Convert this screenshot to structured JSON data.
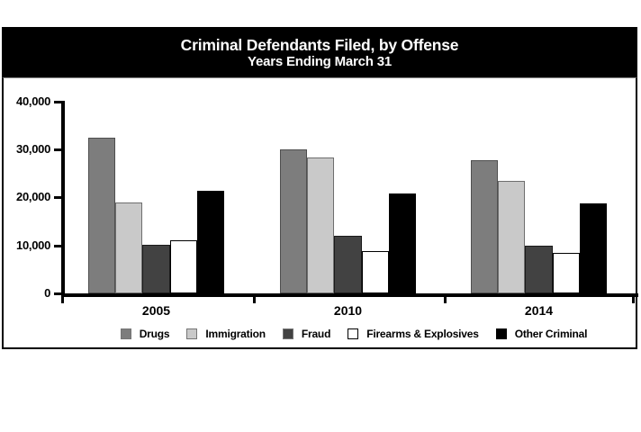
{
  "header": {
    "title": "Criminal Defendants Filed, by Offense",
    "subtitle": "Years Ending March 31"
  },
  "chart_data": {
    "type": "bar",
    "title": "Criminal Defendants Filed, by Offense",
    "subtitle": "Years Ending March 31",
    "categories": [
      "2005",
      "2010",
      "2014"
    ],
    "series": [
      {
        "name": "Drugs",
        "values": [
          32500,
          30100,
          27700
        ],
        "fill": "#7d7d7d",
        "border": "#4f4f4f"
      },
      {
        "name": "Immigration",
        "values": [
          18900,
          28400,
          23400
        ],
        "fill": "#c9c9c9",
        "border": "#6e6e6e"
      },
      {
        "name": "Fraud",
        "values": [
          10100,
          12000,
          9900
        ],
        "fill": "#424242",
        "border": "#1a1a1a"
      },
      {
        "name": "Firearms & Explosives",
        "values": [
          11000,
          8800,
          8400
        ],
        "fill": "#ffffff",
        "border": "#000000"
      },
      {
        "name": "Other Criminal",
        "values": [
          21500,
          20900,
          18800
        ],
        "fill": "#000000",
        "border": "#000000"
      }
    ],
    "yticks": [
      {
        "label": "0",
        "value": 0
      },
      {
        "label": "10,000",
        "value": 10000
      },
      {
        "label": "20,000",
        "value": 20000
      },
      {
        "label": "30,000",
        "value": 30000
      },
      {
        "label": "40,000",
        "value": 40000
      }
    ],
    "ylim": [
      0,
      40000
    ],
    "xlabel": "",
    "ylabel": "",
    "grid": false,
    "legend_position": "bottom"
  }
}
